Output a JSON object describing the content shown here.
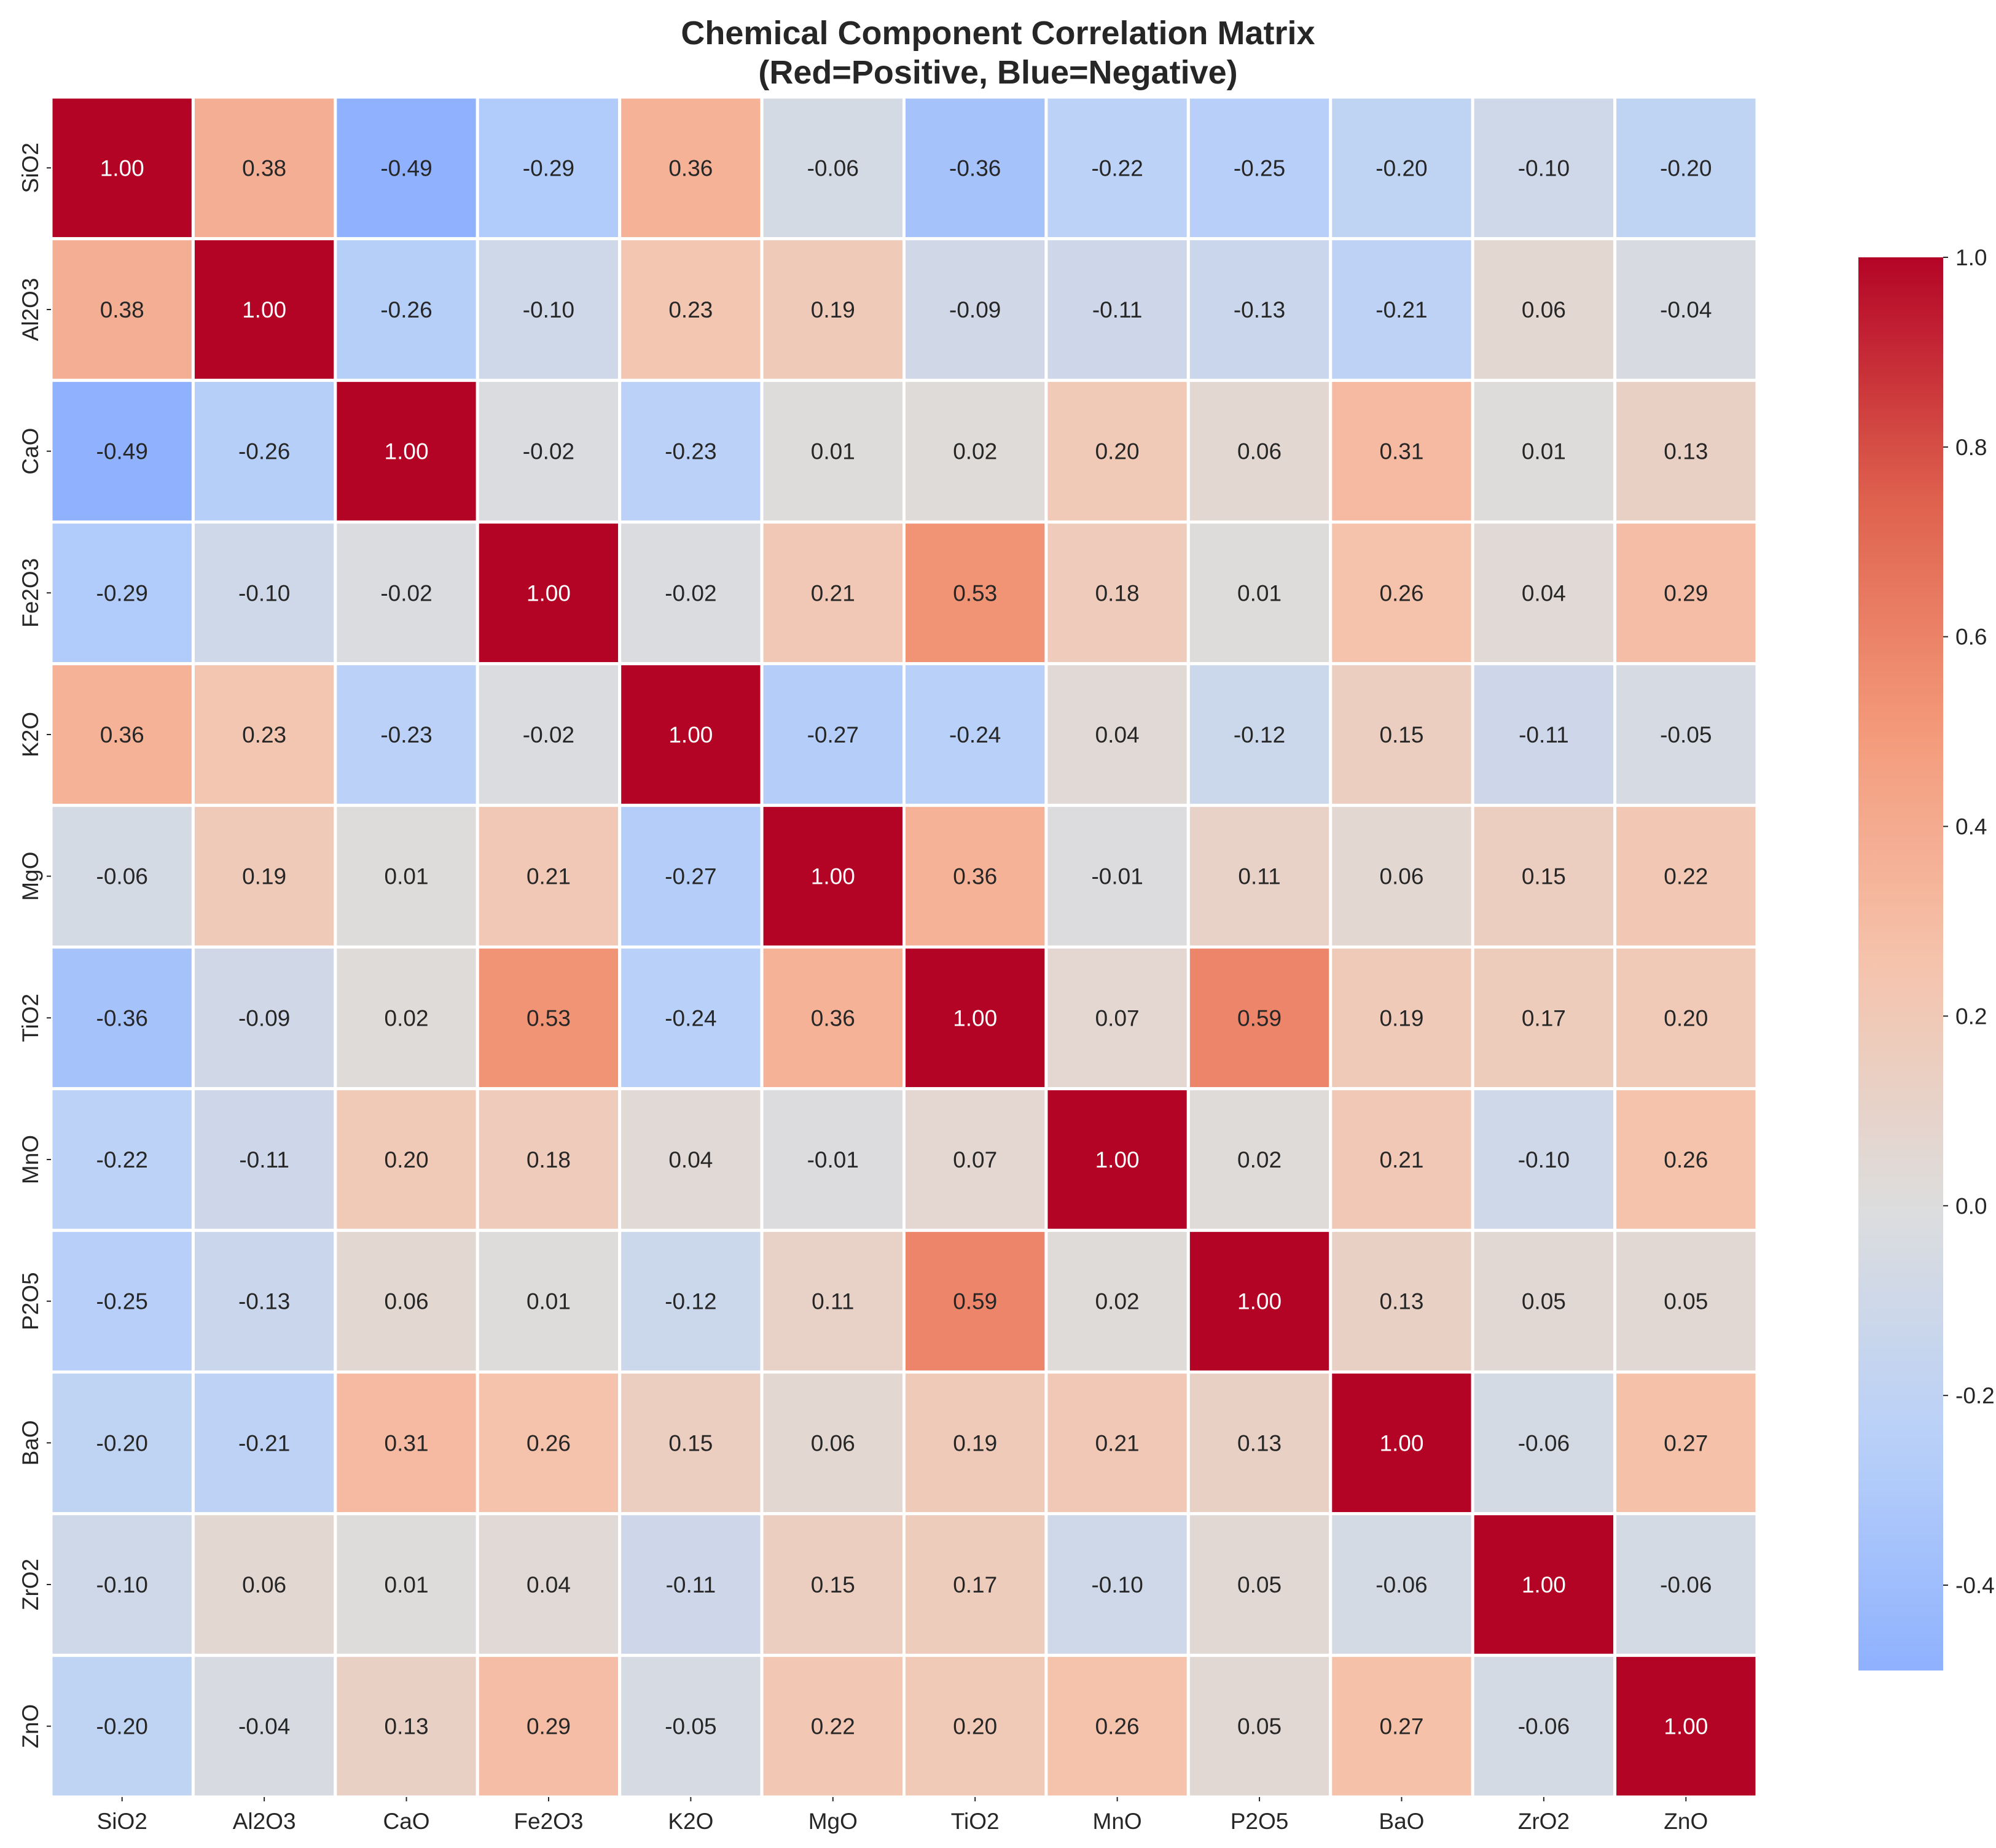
{
  "chart_data": {
    "type": "heatmap",
    "title_lines": [
      "Chemical Component Correlation Matrix",
      "(Red=Positive, Blue=Negative)"
    ],
    "rows": [
      "SiO2",
      "Al2O3",
      "CaO",
      "Fe2O3",
      "K2O",
      "MgO",
      "TiO2",
      "MnO",
      "P2O5",
      "BaO",
      "ZrO2",
      "ZnO"
    ],
    "columns": [
      "SiO2",
      "Al2O3",
      "CaO",
      "Fe2O3",
      "K2O",
      "MgO",
      "TiO2",
      "MnO",
      "P2O5",
      "BaO",
      "ZrO2",
      "ZnO"
    ],
    "values": [
      [
        1.0,
        0.38,
        -0.49,
        -0.29,
        0.36,
        -0.06,
        -0.36,
        -0.22,
        -0.25,
        -0.2,
        -0.1,
        -0.2
      ],
      [
        0.38,
        1.0,
        -0.26,
        -0.1,
        0.23,
        0.19,
        -0.09,
        -0.11,
        -0.13,
        -0.21,
        0.06,
        -0.04
      ],
      [
        -0.49,
        -0.26,
        1.0,
        -0.02,
        -0.23,
        0.01,
        0.02,
        0.2,
        0.06,
        0.31,
        0.01,
        0.13
      ],
      [
        -0.29,
        -0.1,
        -0.02,
        1.0,
        -0.02,
        0.21,
        0.53,
        0.18,
        0.01,
        0.26,
        0.04,
        0.29
      ],
      [
        0.36,
        0.23,
        -0.23,
        -0.02,
        1.0,
        -0.27,
        -0.24,
        0.04,
        -0.12,
        0.15,
        -0.11,
        -0.05
      ],
      [
        -0.06,
        0.19,
        0.01,
        0.21,
        -0.27,
        1.0,
        0.36,
        -0.01,
        0.11,
        0.06,
        0.15,
        0.22
      ],
      [
        -0.36,
        -0.09,
        0.02,
        0.53,
        -0.24,
        0.36,
        1.0,
        0.07,
        0.59,
        0.19,
        0.17,
        0.2
      ],
      [
        -0.22,
        -0.11,
        0.2,
        0.18,
        0.04,
        -0.01,
        0.07,
        1.0,
        0.02,
        0.21,
        -0.1,
        0.26
      ],
      [
        -0.25,
        -0.13,
        0.06,
        0.01,
        -0.12,
        0.11,
        0.59,
        0.02,
        1.0,
        0.13,
        0.05,
        0.05
      ],
      [
        -0.2,
        -0.21,
        0.31,
        0.26,
        0.15,
        0.06,
        0.19,
        0.21,
        0.13,
        1.0,
        -0.06,
        0.27
      ],
      [
        -0.1,
        0.06,
        0.01,
        0.04,
        -0.11,
        0.15,
        0.17,
        -0.1,
        0.05,
        -0.06,
        1.0,
        -0.06
      ],
      [
        -0.2,
        -0.04,
        0.13,
        0.29,
        -0.05,
        0.22,
        0.2,
        0.26,
        0.05,
        0.27,
        -0.06,
        1.0
      ]
    ],
    "colormap": "coolwarm",
    "center": 0,
    "colorbar": {
      "vmin": -0.49,
      "vmax": 1.0,
      "ticks": [
        1.0,
        0.8,
        0.6,
        0.4,
        0.2,
        0.0,
        -0.2,
        -0.4
      ],
      "tick_labels": [
        "1.0",
        "0.8",
        "0.6",
        "0.4",
        "0.2",
        "0.0",
        "-0.2",
        "-0.4"
      ]
    },
    "annotation_format": "2 decimals"
  }
}
